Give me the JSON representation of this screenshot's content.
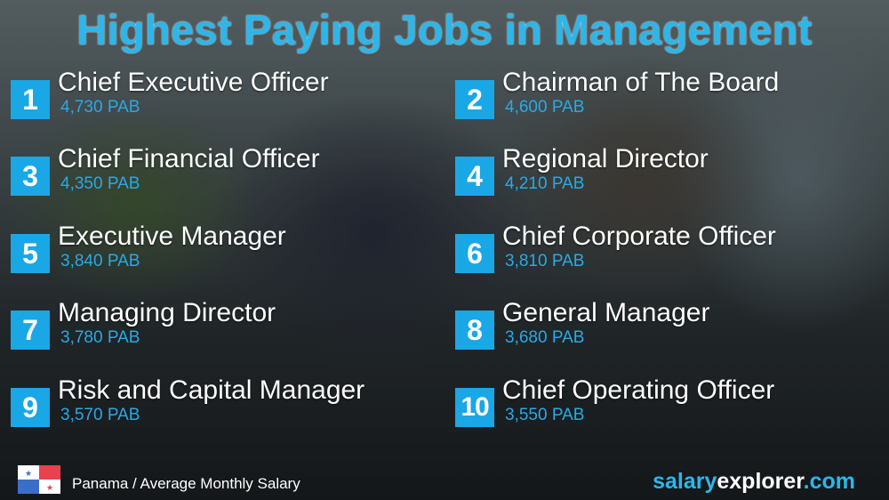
{
  "title": "Highest Paying Jobs in Management",
  "jobs": [
    {
      "rank": "1",
      "title": "Chief Executive Officer",
      "salary": "4,730 PAB"
    },
    {
      "rank": "2",
      "title": "Chairman of The Board",
      "salary": "4,600 PAB"
    },
    {
      "rank": "3",
      "title": "Chief Financial Officer",
      "salary": "4,350 PAB"
    },
    {
      "rank": "4",
      "title": "Regional Director",
      "salary": "4,210 PAB"
    },
    {
      "rank": "5",
      "title": "Executive Manager",
      "salary": "3,840 PAB"
    },
    {
      "rank": "6",
      "title": "Chief Corporate Officer",
      "salary": "3,810 PAB"
    },
    {
      "rank": "7",
      "title": "Managing Director",
      "salary": "3,780 PAB"
    },
    {
      "rank": "8",
      "title": "General Manager",
      "salary": "3,680 PAB"
    },
    {
      "rank": "9",
      "title": "Risk and Capital Manager",
      "salary": "3,570 PAB"
    },
    {
      "rank": "10",
      "title": "Chief Operating Officer",
      "salary": "3,550 PAB"
    }
  ],
  "footer": {
    "flag_icon": "panama-flag",
    "caption": "Panama / Average Monthly Salary",
    "brand_part1": "salary",
    "brand_part2": "explorer",
    "brand_part3": ".com"
  },
  "colors": {
    "accent": "#1aa7e6",
    "salary": "#2aa9e4"
  }
}
